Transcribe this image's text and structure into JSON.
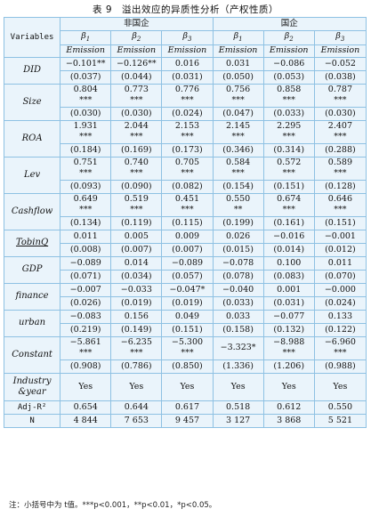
{
  "title": "表 9　溢出效应的异质性分析（产权性质）",
  "header": {
    "variables_label": "Variables",
    "group_nonsoe": "非国企",
    "group_soe": "国企",
    "betas": [
      {
        "sym": "β",
        "sub": "1"
      },
      {
        "sym": "β",
        "sub": "2"
      },
      {
        "sym": "β",
        "sub": "3"
      },
      {
        "sym": "β",
        "sub": "1"
      },
      {
        "sym": "β",
        "sub": "2"
      },
      {
        "sym": "β",
        "sub": "3"
      }
    ],
    "dep_var": [
      "Emission",
      "Emission",
      "Emission",
      "Emission",
      "Emission",
      "Emission"
    ]
  },
  "rows": [
    {
      "name": "DID",
      "coef": [
        "−0.101**",
        "−0.126**",
        "0.016",
        "0.031",
        "−0.086",
        "−0.052"
      ],
      "stars": [
        "",
        "",
        "",
        "",
        "",
        ""
      ],
      "se": [
        "(0.037)",
        "(0.044)",
        "(0.031)",
        "(0.050)",
        "(0.053)",
        "(0.038)"
      ]
    },
    {
      "name": "Size",
      "coef": [
        "0.804",
        "0.773",
        "0.776",
        "0.756",
        "0.858",
        "0.787"
      ],
      "stars": [
        "***",
        "***",
        "***",
        "***",
        "***",
        "***"
      ],
      "se": [
        "(0.030)",
        "(0.030)",
        "(0.024)",
        "(0.047)",
        "(0.033)",
        "(0.030)"
      ]
    },
    {
      "name": "ROA",
      "coef": [
        "1.931",
        "2.044",
        "2.153",
        "2.145",
        "2.295",
        "2.407"
      ],
      "stars": [
        "***",
        "***",
        "***",
        "***",
        "***",
        "***"
      ],
      "se": [
        "(0.184)",
        "(0.169)",
        "(0.173)",
        "(0.346)",
        "(0.314)",
        "(0.288)"
      ]
    },
    {
      "name": "Lev",
      "coef": [
        "0.751",
        "0.740",
        "0.705",
        "0.584",
        "0.572",
        "0.589"
      ],
      "stars": [
        "***",
        "***",
        "***",
        "***",
        "***",
        "***"
      ],
      "se": [
        "(0.093)",
        "(0.090)",
        "(0.082)",
        "(0.154)",
        "(0.151)",
        "(0.128)"
      ]
    },
    {
      "name": "Cashflow",
      "coef": [
        "0.649",
        "0.519",
        "0.451",
        "0.550",
        "0.674",
        "0.646"
      ],
      "stars": [
        "***",
        "***",
        "***",
        "**",
        "***",
        "***"
      ],
      "se": [
        "(0.134)",
        "(0.119)",
        "(0.115)",
        "(0.199)",
        "(0.161)",
        "(0.151)"
      ]
    },
    {
      "name": "TobinQ",
      "coef": [
        "0.011",
        "0.005",
        "0.009",
        "0.026",
        "−0.016",
        "−0.001"
      ],
      "stars": [
        "",
        "",
        "",
        "",
        "",
        ""
      ],
      "se": [
        "(0.008)",
        "(0.007)",
        "(0.007)",
        "(0.015)",
        "(0.014)",
        "(0.012)"
      ]
    },
    {
      "name": "GDP",
      "coef": [
        "−0.089",
        "0.014",
        "−0.089",
        "−0.078",
        "0.100",
        "0.011"
      ],
      "stars": [
        "",
        "",
        "",
        "",
        "",
        ""
      ],
      "se": [
        "(0.071)",
        "(0.034)",
        "(0.057)",
        "(0.078)",
        "(0.083)",
        "(0.070)"
      ]
    },
    {
      "name": "finance",
      "coef": [
        "−0.007",
        "−0.033",
        "−0.047*",
        "−0.040",
        "0.001",
        "−0.000"
      ],
      "stars": [
        "",
        "",
        "",
        "",
        "",
        ""
      ],
      "se": [
        "(0.026)",
        "(0.019)",
        "(0.019)",
        "(0.033)",
        "(0.031)",
        "(0.024)"
      ]
    },
    {
      "name": "urban",
      "coef": [
        "−0.083",
        "0.156",
        "0.049",
        "0.033",
        "−0.077",
        "0.133"
      ],
      "stars": [
        "",
        "",
        "",
        "",
        "",
        ""
      ],
      "se": [
        "(0.219)",
        "(0.149)",
        "(0.151)",
        "(0.158)",
        "(0.132)",
        "(0.122)"
      ]
    },
    {
      "name": "Constant",
      "coef": [
        "−5.861",
        "−6.235",
        "−5.300",
        "−3.323*",
        "−8.988",
        "−6.960"
      ],
      "stars": [
        "***",
        "***",
        "***",
        "",
        "***",
        "***"
      ],
      "se": [
        "(0.908)",
        "(0.786)",
        "(0.850)",
        "(1.336)",
        "(1.206)",
        "(0.988)"
      ]
    }
  ],
  "industry_year": {
    "label_line1": "Industry",
    "label_line2": "&year",
    "values": [
      "Yes",
      "Yes",
      "Yes",
      "Yes",
      "Yes",
      "Yes"
    ]
  },
  "adj_r2": {
    "label": "Adj-R²",
    "values": [
      "0.654",
      "0.644",
      "0.617",
      "0.518",
      "0.612",
      "0.550"
    ]
  },
  "n": {
    "label": "N",
    "values": [
      "4 844",
      "7 653",
      "9 457",
      "3 127",
      "3 868",
      "5 521"
    ]
  },
  "note": "注：小括号中为 t值。***p<0.001，**p<0.01，*p<0.05。"
}
